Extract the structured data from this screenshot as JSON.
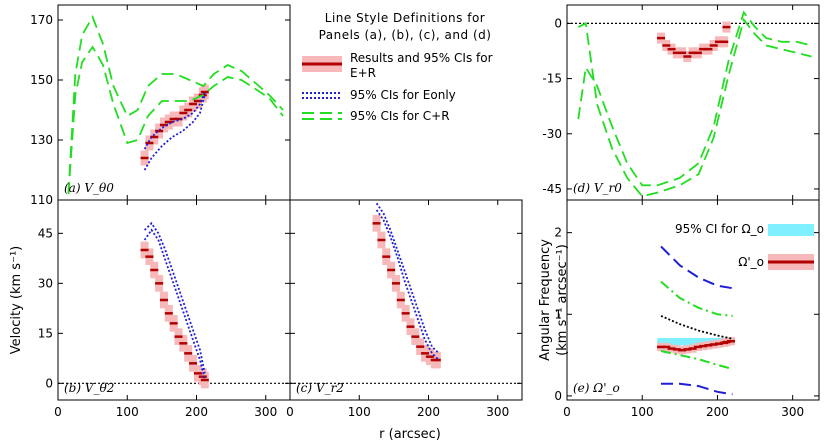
{
  "figure": {
    "xlabel": "r (arcsec)",
    "ylabel_velocity": "Velocity (km s⁻¹)",
    "legend": {
      "title_line1": "Line Style Definitions for",
      "title_line2": "Panels (a), (b), (c), and (d)",
      "entries": [
        {
          "label_line1": "Results and 95% CIs for",
          "label_line2": "E+R",
          "style": "results"
        },
        {
          "label_line1": "95% CIs for Eonly",
          "label_line2": "",
          "style": "dotted-blue"
        },
        {
          "label_line1": "95% CIs for C+R",
          "label_line2": "",
          "style": "dashed-green"
        }
      ]
    },
    "colors": {
      "results": "#b30000",
      "results_ci": "#f6b8b8",
      "eonly": "#1f1fd6",
      "cr": "#22dd22",
      "omega_ci": "#7ff0ff",
      "black": "#000000"
    }
  },
  "chart_data": [
    {
      "id": "a",
      "type": "line",
      "panel_label": "(a) V_θ0",
      "xlim": [
        0,
        335
      ],
      "ylim": [
        110,
        175
      ],
      "yticks": [
        110,
        130,
        150,
        170
      ],
      "xticks": [
        0,
        100,
        200,
        300
      ],
      "series": [
        {
          "style": "results",
          "x": [
            125,
            132,
            139,
            146,
            153,
            160,
            167,
            174,
            181,
            188,
            195,
            202,
            209,
            212
          ],
          "y": [
            124,
            129,
            131,
            133,
            135,
            136,
            137,
            137,
            139,
            140,
            142,
            143,
            145,
            146
          ],
          "ci": 2.5
        },
        {
          "style": "dotted-blue",
          "x": [
            125,
            135,
            150,
            165,
            180,
            195,
            205,
            212
          ],
          "y": [
            127,
            131,
            134,
            136,
            137,
            139,
            142,
            146
          ]
        },
        {
          "style": "dotted-blue",
          "x": [
            125,
            135,
            150,
            165,
            180,
            195,
            205,
            212
          ],
          "y": [
            120,
            124,
            128,
            131,
            133,
            136,
            139,
            145
          ]
        },
        {
          "style": "dashed-green",
          "x": [
            15,
            25,
            35,
            50,
            65,
            80,
            100,
            115,
            130,
            150,
            170,
            190,
            210,
            225,
            245,
            265,
            285,
            305,
            325
          ],
          "y": [
            112,
            152,
            165,
            171,
            162,
            148,
            138,
            140,
            148,
            152,
            152,
            150,
            148,
            152,
            155,
            153,
            149,
            145,
            140
          ]
        },
        {
          "style": "dashed-green",
          "x": [
            15,
            25,
            35,
            50,
            65,
            80,
            100,
            115,
            130,
            150,
            170,
            190,
            210,
            225,
            245,
            265,
            285,
            305,
            325
          ],
          "y": [
            112,
            145,
            156,
            161,
            155,
            142,
            129,
            130,
            138,
            143,
            143,
            143,
            145,
            148,
            151,
            150,
            147,
            144,
            138
          ]
        }
      ]
    },
    {
      "id": "b",
      "type": "line",
      "panel_label": "(b) V_θ2",
      "xlim": [
        0,
        335
      ],
      "ylim": [
        -5,
        55
      ],
      "yticks": [
        0,
        15,
        30,
        45
      ],
      "xticks": [
        0,
        100,
        200,
        300
      ],
      "zero_line": true,
      "series": [
        {
          "style": "results",
          "x": [
            125,
            132,
            139,
            146,
            153,
            160,
            167,
            174,
            181,
            188,
            195,
            202,
            209,
            212
          ],
          "y": [
            40,
            38,
            34,
            30,
            25,
            21,
            18,
            14,
            12,
            9,
            6,
            3,
            2,
            1
          ],
          "ci": 2.5
        },
        {
          "style": "dotted-blue",
          "x": [
            125,
            135,
            145,
            155,
            165,
            175,
            185,
            195,
            205,
            212
          ],
          "y": [
            46,
            48,
            45,
            40,
            34,
            28,
            22,
            16,
            10,
            3
          ]
        },
        {
          "style": "dotted-blue",
          "x": [
            125,
            135,
            145,
            155,
            165,
            175,
            185,
            195,
            205,
            212
          ],
          "y": [
            43,
            46,
            43,
            37,
            31,
            25,
            19,
            13,
            7,
            1
          ]
        }
      ]
    },
    {
      "id": "c",
      "type": "line",
      "panel_label": "(c) V_r2",
      "xlim": [
        0,
        335
      ],
      "ylim": [
        -5,
        55
      ],
      "yticks": [
        0,
        15,
        30,
        45
      ],
      "xticks": [
        0,
        100,
        200,
        300
      ],
      "zero_line": true,
      "series": [
        {
          "style": "results",
          "x": [
            125,
            132,
            139,
            146,
            153,
            160,
            167,
            174,
            181,
            188,
            195,
            202,
            209,
            212
          ],
          "y": [
            48,
            43,
            38,
            34,
            30,
            25,
            21,
            17,
            14,
            11,
            9,
            8,
            7,
            7
          ],
          "ci": 2.5
        },
        {
          "style": "dotted-blue",
          "x": [
            125,
            135,
            145,
            155,
            165,
            175,
            185,
            195,
            205,
            215
          ],
          "y": [
            54,
            51,
            46,
            40,
            34,
            28,
            22,
            16,
            11,
            9
          ]
        },
        {
          "style": "dotted-blue",
          "x": [
            125,
            135,
            145,
            155,
            165,
            175,
            185,
            195,
            205,
            215
          ],
          "y": [
            52,
            49,
            44,
            38,
            31,
            25,
            19,
            13,
            9,
            7
          ]
        }
      ]
    },
    {
      "id": "d",
      "type": "line",
      "panel_label": "(d) V_r0",
      "xlim": [
        0,
        335
      ],
      "ylim": [
        -48,
        5
      ],
      "yticks": [
        -45,
        -30,
        -15,
        0
      ],
      "xticks": [
        0,
        100,
        200,
        300
      ],
      "zero_line": true,
      "series": [
        {
          "style": "results",
          "x": [
            125,
            132,
            139,
            146,
            153,
            160,
            167,
            174,
            181,
            188,
            195,
            202,
            209,
            212
          ],
          "y": [
            -4,
            -6,
            -7,
            -8,
            -8,
            -9,
            -8,
            -8,
            -7,
            -7,
            -6,
            -5,
            -5,
            -1
          ],
          "ci": 1.5
        },
        {
          "style": "dashed-green",
          "x": [
            15,
            25,
            40,
            60,
            80,
            100,
            120,
            150,
            175,
            195,
            215,
            235,
            250,
            265,
            285,
            305,
            325
          ],
          "y": [
            -26,
            -12,
            -17,
            -28,
            -38,
            -44,
            -44,
            -42,
            -38,
            -28,
            -10,
            3,
            -1,
            -4,
            -5,
            -5,
            -6
          ]
        },
        {
          "style": "dashed-green",
          "x": [
            15,
            25,
            40,
            60,
            80,
            100,
            120,
            150,
            175,
            195,
            215,
            235,
            250,
            265,
            285,
            305,
            325
          ],
          "y": [
            -1,
            0,
            -22,
            -34,
            -42,
            -47,
            -46,
            -44,
            -41,
            -31,
            -14,
            1,
            -3,
            -6,
            -7,
            -8,
            -9
          ]
        }
      ]
    },
    {
      "id": "e",
      "type": "line",
      "panel_label": "(e) Ω'_o",
      "xlim": [
        0,
        335
      ],
      "ylim": [
        -0.05,
        2.4
      ],
      "yticks": [
        0,
        1,
        2
      ],
      "xticks": [
        0,
        100,
        200,
        300
      ],
      "ylabel_line1": "Angular Frequency",
      "ylabel_line2": "(km s⁻¹ arcsec⁻¹)",
      "legend": [
        {
          "label": "95% CI for Ω_o",
          "style": "omega-ci"
        },
        {
          "label": "Ω'_o",
          "style": "results"
        }
      ],
      "omega_ci": {
        "x": [
          120,
          220
        ],
        "y": [
          0.62,
          0.71
        ]
      },
      "series": [
        {
          "style": "results",
          "x": [
            125,
            132,
            139,
            146,
            153,
            160,
            167,
            174,
            181,
            188,
            195,
            202,
            209,
            212,
            218
          ],
          "y": [
            0.6,
            0.6,
            0.58,
            0.57,
            0.56,
            0.57,
            0.58,
            0.6,
            0.61,
            0.62,
            0.63,
            0.64,
            0.65,
            0.66,
            0.67
          ],
          "ci": 0.05
        },
        {
          "style": "dashed-blue",
          "x": [
            125,
            150,
            175,
            200,
            220
          ],
          "y": [
            1.83,
            1.6,
            1.45,
            1.35,
            1.32
          ]
        },
        {
          "style": "dashed-blue",
          "x": [
            125,
            150,
            175,
            200,
            220
          ],
          "y": [
            0.15,
            0.15,
            0.12,
            0.05,
            0.02
          ]
        },
        {
          "style": "dashdot-green",
          "x": [
            125,
            150,
            175,
            200,
            220
          ],
          "y": [
            1.4,
            1.2,
            1.08,
            1.0,
            0.98
          ]
        },
        {
          "style": "dashdot-green",
          "x": [
            125,
            150,
            175,
            200,
            220
          ],
          "y": [
            0.55,
            0.5,
            0.45,
            0.38,
            0.33
          ]
        },
        {
          "style": "dotted-black",
          "x": [
            125,
            150,
            175,
            200,
            220
          ],
          "y": [
            0.98,
            0.88,
            0.8,
            0.74,
            0.7
          ]
        }
      ]
    }
  ]
}
